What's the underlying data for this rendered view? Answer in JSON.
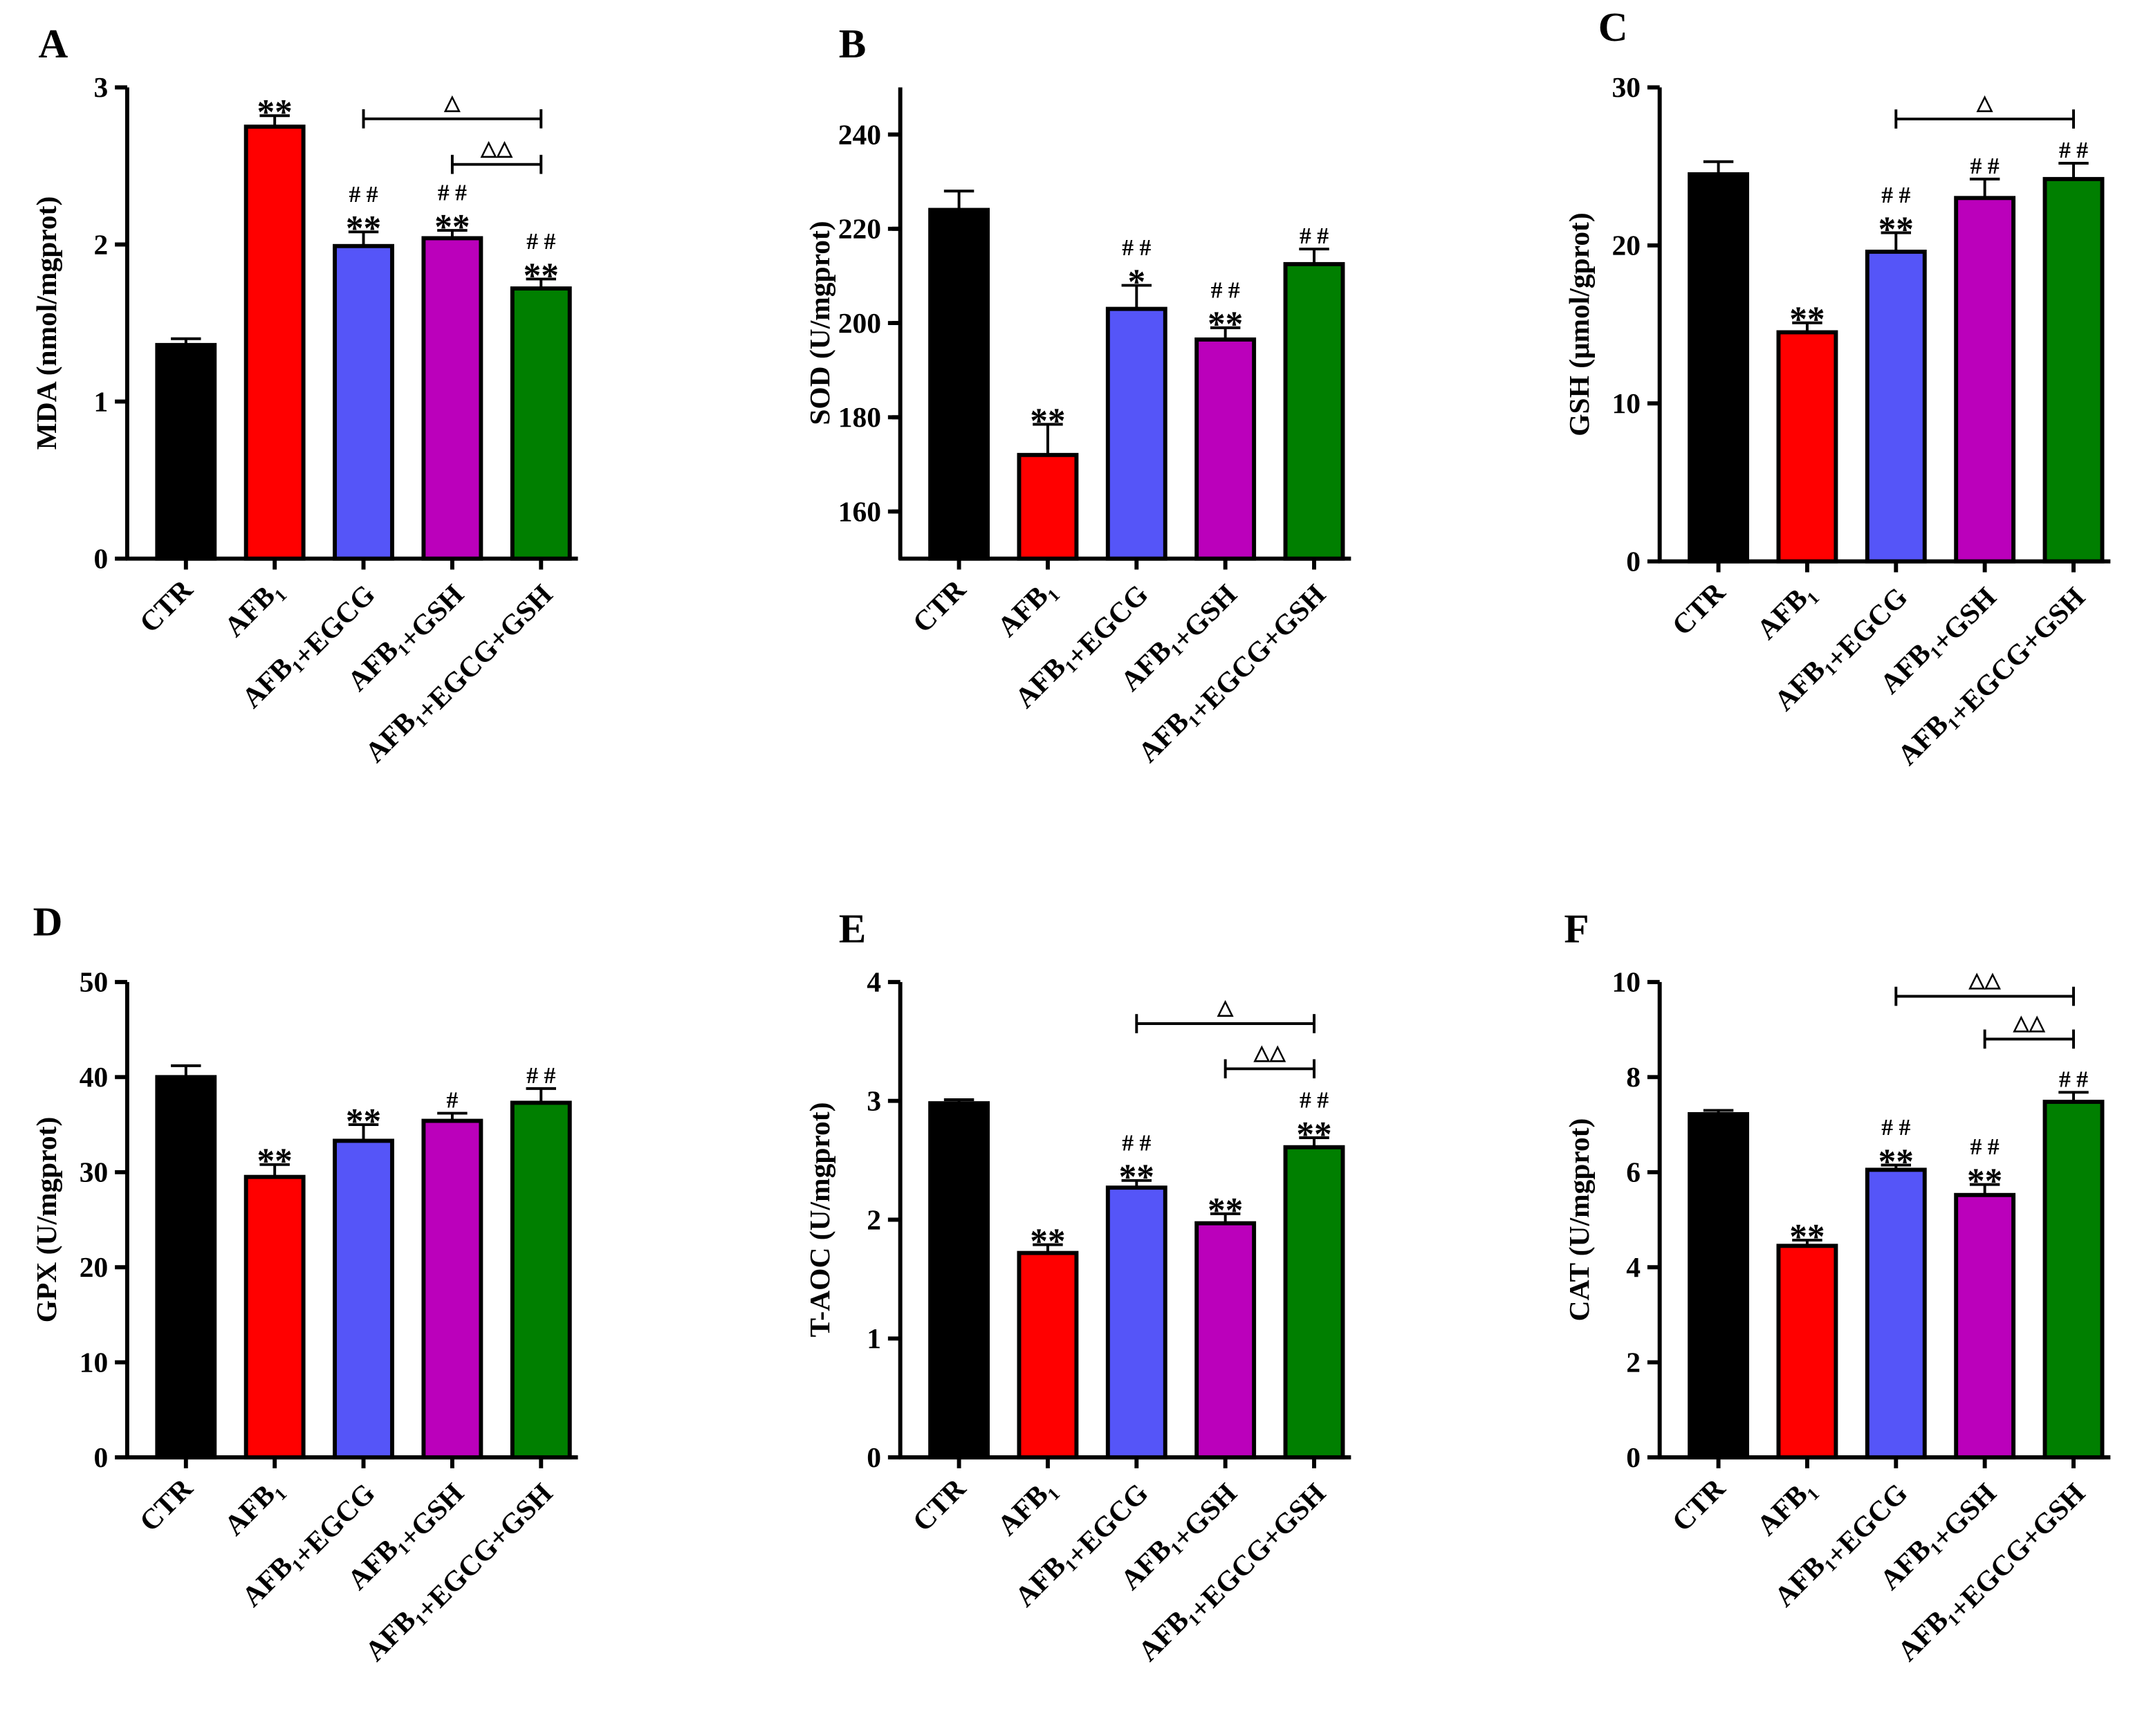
{
  "chart_data": [
    {
      "type": "bar",
      "panel": "A",
      "ylabel": "MDA (nmol/mgprot)",
      "ylim": [
        0,
        3
      ],
      "yticks": [
        0,
        1,
        2,
        3
      ],
      "minor": false,
      "categories": [
        "CTR",
        "AFB₁",
        "AFB₁+EGCG",
        "AFB₁+GSH",
        "AFB₁+EGCG+GSH"
      ],
      "values": [
        1.36,
        2.75,
        1.99,
        2.04,
        1.72
      ],
      "errors": [
        0.04,
        0.07,
        0.09,
        0.05,
        0.06
      ],
      "marks": [
        [],
        [
          "**"
        ],
        [
          "##",
          "**"
        ],
        [
          "##",
          "**"
        ],
        [
          "##",
          "**"
        ]
      ],
      "brackets": [
        {
          "from": 2,
          "to": 4,
          "y": 2.8,
          "label": "△"
        },
        {
          "from": 3,
          "to": 4,
          "y": 2.51,
          "label": "△△"
        }
      ]
    },
    {
      "type": "bar",
      "panel": "B",
      "ylabel": "SOD (U/mgprot)",
      "ylim": [
        150,
        250
      ],
      "yticks": [
        160,
        180,
        200,
        220,
        240
      ],
      "minor": true,
      "categories": [
        "CTR",
        "AFB₁",
        "AFB₁+EGCG",
        "AFB₁+GSH",
        "AFB₁+EGCG+GSH"
      ],
      "values": [
        224,
        172,
        203,
        196.5,
        212.5
      ],
      "errors": [
        4,
        6.5,
        5,
        2.5,
        3.2
      ],
      "marks": [
        [],
        [
          "**"
        ],
        [
          "##",
          "*"
        ],
        [
          "##",
          "**"
        ],
        [
          "##"
        ]
      ],
      "brackets": []
    },
    {
      "type": "bar",
      "panel": "C",
      "ylabel": "GSH (μmol/gprot)",
      "ylim": [
        0,
        30
      ],
      "yticks": [
        0,
        10,
        20,
        30
      ],
      "minor": false,
      "categories": [
        "CTR",
        "AFB₁",
        "AFB₁+EGCG",
        "AFB₁+GSH",
        "AFB₁+EGCG+GSH"
      ],
      "values": [
        24.5,
        14.5,
        19.6,
        23,
        24.2
      ],
      "errors": [
        0.8,
        0.6,
        1.2,
        1.2,
        1.0
      ],
      "marks": [
        [],
        [
          "**"
        ],
        [
          "##",
          "**"
        ],
        [
          "##"
        ],
        [
          "##"
        ]
      ],
      "brackets": [
        {
          "from": 2,
          "to": 4,
          "y": 28,
          "label": "△"
        }
      ]
    },
    {
      "type": "bar",
      "panel": "D",
      "ylabel": "GPX (U/mgprot)",
      "ylim": [
        0,
        50
      ],
      "yticks": [
        0,
        10,
        20,
        30,
        40,
        50
      ],
      "minor": false,
      "categories": [
        "CTR",
        "AFB₁",
        "AFB₁+EGCG",
        "AFB₁+GSH",
        "AFB₁+EGCG+GSH"
      ],
      "values": [
        40,
        29.5,
        33.3,
        35.4,
        37.3
      ],
      "errors": [
        1.2,
        1.3,
        1.7,
        0.8,
        1.5
      ],
      "marks": [
        [],
        [
          "**"
        ],
        [
          "**"
        ],
        [
          "#"
        ],
        [
          "##"
        ]
      ],
      "brackets": []
    },
    {
      "type": "bar",
      "panel": "E",
      "ylabel": "T-AOC (U/mgprot)",
      "ylim": [
        0,
        4
      ],
      "yticks": [
        0,
        1,
        2,
        3,
        4
      ],
      "minor": false,
      "categories": [
        "CTR",
        "AFB₁",
        "AFB₁+EGCG",
        "AFB₁+GSH",
        "AFB₁+EGCG+GSH"
      ],
      "values": [
        2.98,
        1.72,
        2.27,
        1.97,
        2.61
      ],
      "errors": [
        0.03,
        0.07,
        0.06,
        0.08,
        0.08
      ],
      "marks": [
        [],
        [
          "**"
        ],
        [
          "##",
          "**"
        ],
        [
          "**"
        ],
        [
          "##",
          "**"
        ]
      ],
      "brackets": [
        {
          "from": 2,
          "to": 4,
          "y": 3.65,
          "label": "△"
        },
        {
          "from": 3,
          "to": 4,
          "y": 3.27,
          "label": "△△"
        }
      ]
    },
    {
      "type": "bar",
      "panel": "F",
      "ylabel": "CAT (U/mgprot)",
      "ylim": [
        0,
        10
      ],
      "yticks": [
        0,
        2,
        4,
        6,
        8,
        10
      ],
      "minor": false,
      "categories": [
        "CTR",
        "AFB₁",
        "AFB₁+EGCG",
        "AFB₁+GSH",
        "AFB₁+EGCG+GSH"
      ],
      "values": [
        7.22,
        4.45,
        6.05,
        5.52,
        7.48
      ],
      "errors": [
        0.08,
        0.12,
        0.1,
        0.22,
        0.2
      ],
      "marks": [
        [],
        [
          "**"
        ],
        [
          "##",
          "**"
        ],
        [
          "##",
          "**"
        ],
        [
          "##"
        ]
      ],
      "brackets": [
        {
          "from": 2,
          "to": 4,
          "y": 9.7,
          "label": "△△"
        },
        {
          "from": 3,
          "to": 4,
          "y": 8.8,
          "label": "△△"
        }
      ]
    }
  ],
  "colors": [
    "#000000",
    "#ff0000",
    "#5555f8",
    "#bb00bb",
    "#007f00"
  ]
}
